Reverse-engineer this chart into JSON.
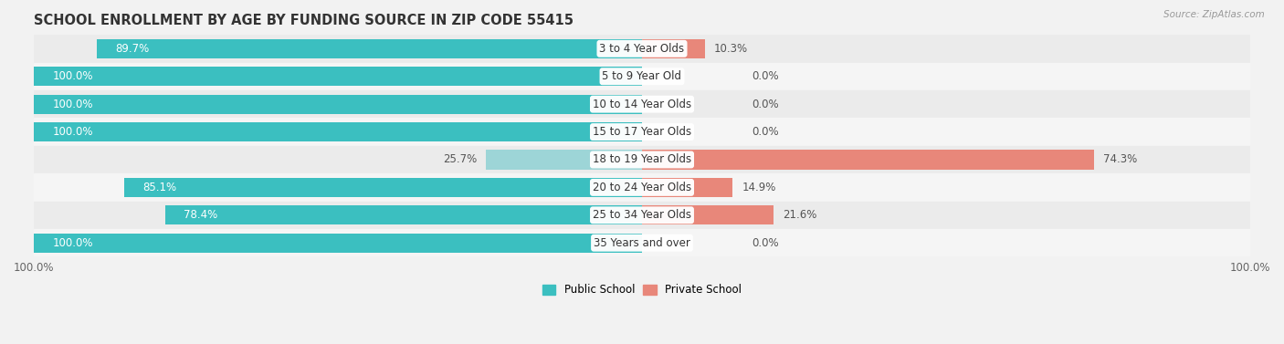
{
  "title": "SCHOOL ENROLLMENT BY AGE BY FUNDING SOURCE IN ZIP CODE 55415",
  "source": "Source: ZipAtlas.com",
  "categories": [
    "3 to 4 Year Olds",
    "5 to 9 Year Old",
    "10 to 14 Year Olds",
    "15 to 17 Year Olds",
    "18 to 19 Year Olds",
    "20 to 24 Year Olds",
    "25 to 34 Year Olds",
    "35 Years and over"
  ],
  "public_values": [
    89.7,
    100.0,
    100.0,
    100.0,
    25.7,
    85.1,
    78.4,
    100.0
  ],
  "private_values": [
    10.3,
    0.0,
    0.0,
    0.0,
    74.3,
    14.9,
    21.6,
    0.0
  ],
  "public_color": "#3BBFC0",
  "private_color": "#E8877A",
  "public_color_light": "#9DD5D7",
  "row_colors": [
    "#EBEBEB",
    "#F5F5F5"
  ],
  "title_fontsize": 10.5,
  "label_fontsize": 8.5,
  "axis_label_fontsize": 8.5,
  "legend_fontsize": 8.5
}
